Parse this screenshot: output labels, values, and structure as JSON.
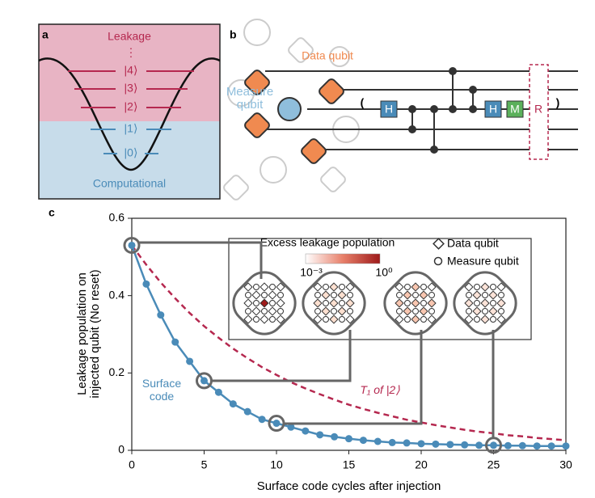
{
  "panels": {
    "a": {
      "label": "a",
      "leakage": "Leakage",
      "dots": "⋮",
      "levels": [
        "|4⟩",
        "|3⟩",
        "|2⟩",
        "|1⟩",
        "|0⟩"
      ],
      "computational": "Computational"
    },
    "b": {
      "label": "b",
      "data_qubit": "Data qubit",
      "measure_qubit": "Measure qubit",
      "gates": [
        "H",
        "H",
        "M",
        "R"
      ]
    },
    "c": {
      "label": "c"
    }
  },
  "chart_data": {
    "type": "line",
    "xlabel": "Surface code cycles after injection",
    "ylabel": "Leakage population on injected qubit (No reset)",
    "x": [
      0,
      1,
      2,
      3,
      4,
      5,
      6,
      7,
      8,
      9,
      10,
      11,
      12,
      13,
      14,
      15,
      16,
      17,
      18,
      19,
      20,
      21,
      22,
      23,
      24,
      25,
      26,
      27,
      28,
      29,
      30
    ],
    "series": [
      {
        "name": "Surface code",
        "color": "#4a8bb8",
        "markers": true,
        "values": [
          0.53,
          0.43,
          0.35,
          0.28,
          0.23,
          0.18,
          0.15,
          0.12,
          0.1,
          0.08,
          0.07,
          0.06,
          0.05,
          0.04,
          0.035,
          0.03,
          0.026,
          0.023,
          0.02,
          0.019,
          0.017,
          0.016,
          0.015,
          0.014,
          0.013,
          0.013,
          0.012,
          0.012,
          0.011,
          0.011,
          0.011
        ]
      },
      {
        "name": "T₁ of |2⟩",
        "color": "#b5284f",
        "dashed": true,
        "values": [
          0.53,
          0.48,
          0.434,
          0.393,
          0.355,
          0.321,
          0.291,
          0.263,
          0.238,
          0.215,
          0.195,
          0.176,
          0.16,
          0.145,
          0.131,
          0.118,
          0.107,
          0.097,
          0.088,
          0.079,
          0.072,
          0.065,
          0.059,
          0.053,
          0.048,
          0.044,
          0.039,
          0.036,
          0.032,
          0.029,
          0.026
        ]
      }
    ],
    "xlim": [
      0,
      30
    ],
    "xticks": [
      0,
      5,
      10,
      15,
      20,
      25,
      30
    ],
    "ylim": [
      0,
      0.6
    ],
    "yticks": [
      0,
      0.2,
      0.4,
      0.6
    ],
    "inset": {
      "title": "Excess leakage population",
      "colorbar_low": "10⁻³",
      "colorbar_high": "10⁰",
      "legend": [
        "Data qubit",
        "Measure qubit"
      ]
    }
  }
}
